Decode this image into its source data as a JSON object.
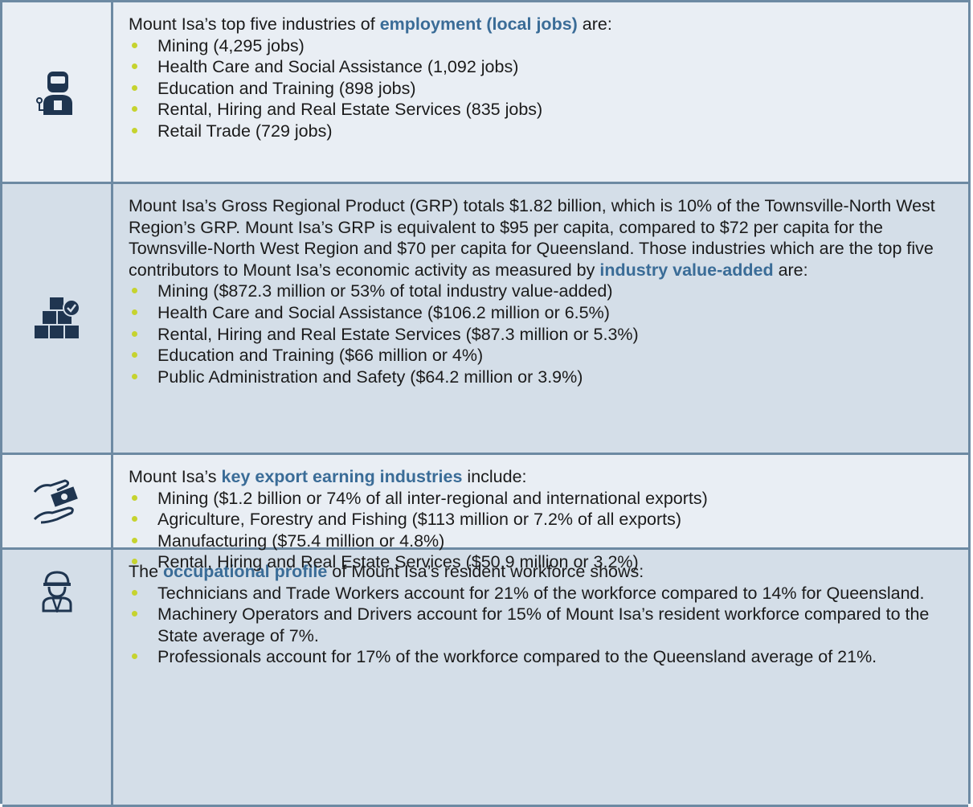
{
  "rows": [
    {
      "intro": {
        "before": "Mount Isa’s top five industries of ",
        "highlight": "employment (local jobs)",
        "after": " are:"
      },
      "bullets": [
        "Mining (4,295 jobs)",
        "Health Care and Social Assistance (1,092 jobs)",
        "Education and Training (898 jobs)",
        "Rental, Hiring and Real Estate Services (835 jobs)",
        "Retail Trade (729 jobs)"
      ]
    },
    {
      "intro": {
        "before": "Mount Isa’s Gross Regional Product (GRP) totals $1.82 billion, which is 10% of the Townsville-North West Region’s GRP. Mount Isa’s GRP is equivalent to $95 per capita, compared to $72 per capita for the Townsville-North West Region and $70 per capita for Queensland. Those industries which are the top five contributors to Mount Isa’s economic activity as measured by ",
        "highlight": "industry value-added",
        "after": " are:"
      },
      "bullets": [
        "Mining ($872.3 million or 53% of total industry value-added)",
        "Health Care and Social Assistance ($106.2 million or 6.5%)",
        "Rental, Hiring and Real Estate Services ($87.3 million or 5.3%)",
        "Education and Training ($66 million or 4%)",
        "Public Administration and Safety ($64.2 million or 3.9%)"
      ]
    },
    {
      "intro": {
        "before": "Mount Isa’s ",
        "highlight": "key export earning industries",
        "after": " include:"
      },
      "bullets": [
        "Mining ($1.2 billion or 74% of all inter-regional and international exports)",
        "Agriculture, Forestry and Fishing ($113 million or 7.2% of all exports)",
        "Manufacturing ($75.4 million or 4.8%)",
        "Rental, Hiring and Real Estate Services ($50.9 million or 3.2%)"
      ]
    },
    {
      "intro": {
        "before": "The ",
        "highlight": "occupational profile",
        "after": " of Mount Isa’s resident workforce shows:"
      },
      "bullets": [
        "Technicians and Trade Workers account for 21% of the workforce compared to 14% for Queensland.",
        "Machinery Operators and Drivers account for 15% of Mount Isa’s resident workforce compared to the State average of 7%.",
        "Professionals account for 17% of the workforce compared to the Queensland average of 21%."
      ]
    }
  ]
}
